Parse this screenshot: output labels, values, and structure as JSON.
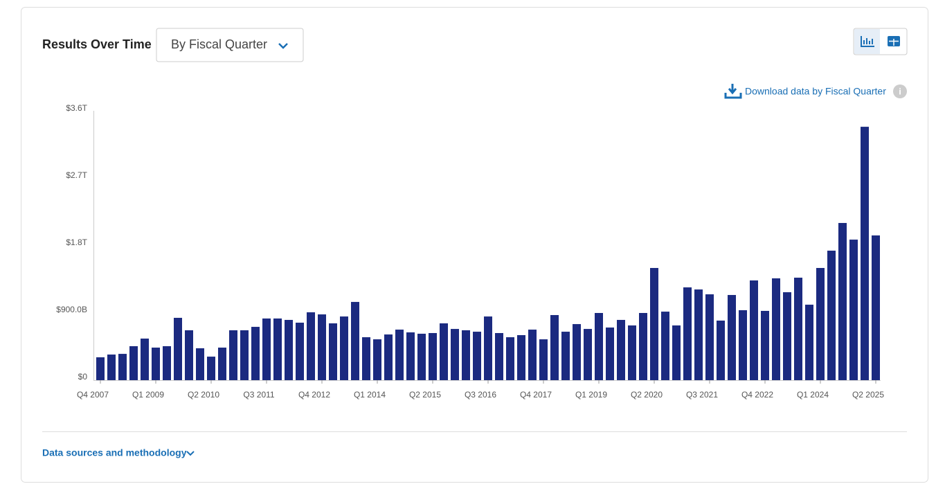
{
  "ui": {
    "heading": "Results Over Time",
    "dropdown": "By Fiscal Quarter",
    "download": "Download data by Fiscal Quarter",
    "footer_link": "Data sources and methodology"
  },
  "chart_data": {
    "type": "bar",
    "color": "#1b2a80",
    "categories": [
      "Q4 2007",
      null,
      null,
      null,
      null,
      "Q1 2009",
      null,
      null,
      null,
      null,
      "Q2 2010",
      null,
      null,
      null,
      null,
      "Q3 2011",
      null,
      null,
      null,
      null,
      "Q4 2012",
      null,
      null,
      null,
      null,
      "Q1 2014",
      null,
      null,
      null,
      null,
      "Q2 2015",
      null,
      null,
      null,
      null,
      "Q3 2016",
      null,
      null,
      null,
      null,
      "Q4 2017",
      null,
      null,
      null,
      null,
      "Q1 2019",
      null,
      null,
      null,
      null,
      "Q2 2020",
      null,
      null,
      null,
      null,
      "Q3 2021",
      null,
      null,
      null,
      null,
      "Q4 2022",
      null,
      null,
      null,
      null,
      "Q1 2024",
      null,
      null,
      null,
      null,
      "Q2 2025"
    ],
    "values": [
      306,
      343,
      352,
      455,
      557,
      436,
      455,
      835,
      668,
      427,
      315,
      436,
      668,
      668,
      714,
      826,
      826,
      807,
      770,
      909,
      881,
      761,
      853,
      1048,
      575,
      547,
      612,
      677,
      640,
      622,
      631,
      761,
      686,
      668,
      649,
      853,
      631,
      575,
      603,
      677,
      547,
      872,
      649,
      751,
      686,
      900,
      705,
      807,
      733,
      900,
      1503,
      918,
      733,
      1243,
      1215,
      1150,
      798,
      1141,
      937,
      1336,
      928,
      1364,
      1178,
      1373,
      1011,
      1503,
      1735,
      2106,
      1883,
      3395,
      1939
    ],
    "ylim": [
      0,
      3600
    ],
    "yticks": [
      {
        "value": 0,
        "label": "$0"
      },
      {
        "value": 900,
        "label": "$900.0B"
      },
      {
        "value": 1800,
        "label": "$1.8T"
      },
      {
        "value": 2700,
        "label": "$2.7T"
      },
      {
        "value": 3600,
        "label": "$3.6T"
      }
    ]
  }
}
